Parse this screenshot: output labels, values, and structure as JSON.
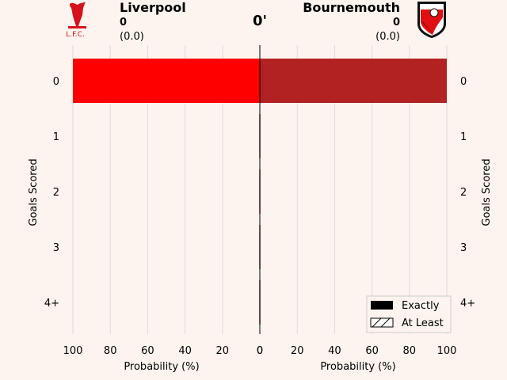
{
  "header": {
    "home_team": "Liverpool",
    "home_goals": "0",
    "home_xg": "(0.0)",
    "away_team": "Bournemouth",
    "away_goals": "0",
    "away_xg": "(0.0)",
    "minute": "0'",
    "home_badge_text": "L.F.C."
  },
  "colors": {
    "background": "#fdf4ef",
    "home": "#ff0000",
    "away": "#b22222",
    "grid": "#dcdcdc"
  },
  "chart_data": {
    "type": "bar",
    "orientation": "horizontal-diverging",
    "categories": [
      "0",
      "1",
      "2",
      "3",
      "4+"
    ],
    "series": [
      {
        "name": "Liverpool",
        "values": [
          100,
          0,
          0,
          0,
          0
        ]
      },
      {
        "name": "Bournemouth",
        "values": [
          100,
          0,
          0,
          0,
          0
        ]
      }
    ],
    "xlim": [
      0,
      100
    ],
    "xticks": [
      "100",
      "80",
      "60",
      "40",
      "20",
      "0",
      "0",
      "20",
      "40",
      "60",
      "80",
      "100"
    ],
    "xlabel_left": "Probability (%)",
    "xlabel_right": "Probability (%)",
    "ylabel_left": "Goals Scored",
    "ylabel_right": "Goals Scored",
    "legend": {
      "position": "bottom-right",
      "entries": [
        "Exactly",
        "At Least"
      ]
    },
    "grid": true
  }
}
